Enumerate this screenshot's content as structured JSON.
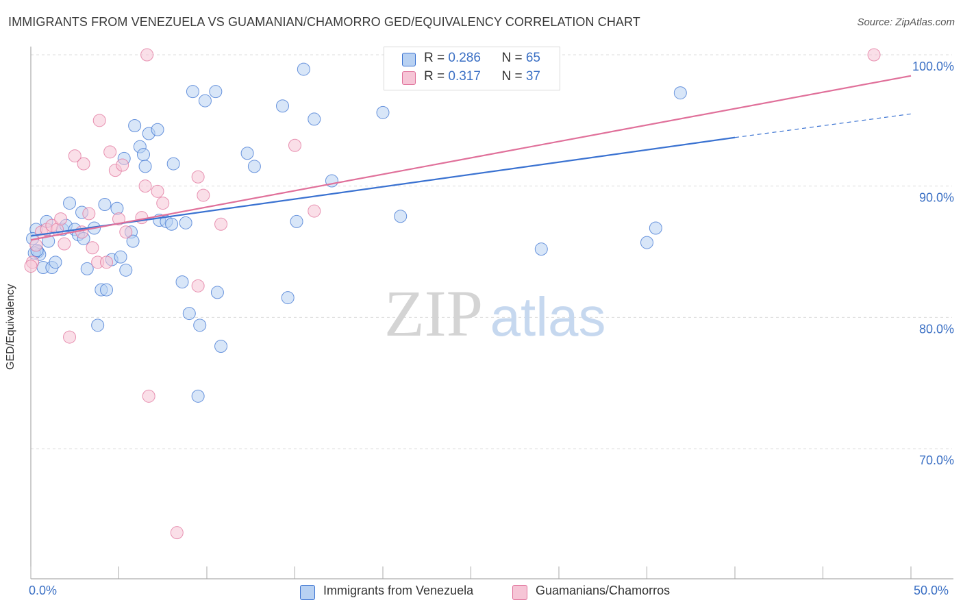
{
  "title": "IMMIGRANTS FROM VENEZUELA VS GUAMANIAN/CHAMORRO GED/EQUIVALENCY CORRELATION CHART",
  "source": "Source: ZipAtlas.com",
  "watermark": {
    "zip": "ZIP",
    "atlas": "atlas"
  },
  "colors": {
    "blue": "#3a72d1",
    "pink": "#e0709a",
    "blue_fill": "#b8d1f2",
    "pink_fill": "#f6c5d6",
    "tick_label": "#3a6fc4",
    "grid": "#dcdcdc"
  },
  "legend_top": {
    "rows": [
      {
        "r_label": "R = ",
        "r_value": "0.286",
        "n_label": "N = ",
        "n_value": "65"
      },
      {
        "r_label": "R = ",
        "r_value": "0.317",
        "n_label": "N = ",
        "n_value": "37"
      }
    ]
  },
  "chart_data": {
    "type": "scatter",
    "title": "IMMIGRANTS FROM VENEZUELA VS GUAMANIAN/CHAMORRO GED/EQUIVALENCY CORRELATION CHART",
    "xlabel": "",
    "ylabel": "GED/Equivalency",
    "xlim": [
      0,
      50
    ],
    "ylim": [
      60,
      101.5
    ],
    "x_tick_labels": [
      "0.0%",
      "50.0%"
    ],
    "y_ticks": [
      70,
      80,
      90,
      100
    ],
    "y_tick_labels": [
      "70.0%",
      "80.0%",
      "90.0%",
      "100.0%"
    ],
    "grid": "horizontal dashed",
    "legend_position": "bottom-center",
    "series": [
      {
        "name": "Immigrants from Venezuela",
        "color": "#3a72d1",
        "r": 0.286,
        "n": 65,
        "trend": {
          "x0": 0.0,
          "y0": 86.2,
          "x1": 40.0,
          "y1": 93.7,
          "dashed_to_x": 50.0,
          "dashed_to_y": 95.5
        },
        "points": [
          [
            0.3,
            86.7
          ],
          [
            0.4,
            85.0
          ],
          [
            0.5,
            84.8
          ],
          [
            0.7,
            83.8
          ],
          [
            0.9,
            87.3
          ],
          [
            1.0,
            85.8
          ],
          [
            1.2,
            83.8
          ],
          [
            1.4,
            84.2
          ],
          [
            1.8,
            86.7
          ],
          [
            2.0,
            87.0
          ],
          [
            2.2,
            88.7
          ],
          [
            2.5,
            86.7
          ],
          [
            2.7,
            86.3
          ],
          [
            2.9,
            88.0
          ],
          [
            3.0,
            86.0
          ],
          [
            3.2,
            83.7
          ],
          [
            3.6,
            86.8
          ],
          [
            3.8,
            79.4
          ],
          [
            4.0,
            82.1
          ],
          [
            4.2,
            88.6
          ],
          [
            4.3,
            82.1
          ],
          [
            4.6,
            84.4
          ],
          [
            4.9,
            88.3
          ],
          [
            5.1,
            84.6
          ],
          [
            5.3,
            92.1
          ],
          [
            5.4,
            83.6
          ],
          [
            5.7,
            86.5
          ],
          [
            5.8,
            85.8
          ],
          [
            5.9,
            94.6
          ],
          [
            6.2,
            93.0
          ],
          [
            6.4,
            92.4
          ],
          [
            6.5,
            91.5
          ],
          [
            6.7,
            94.0
          ],
          [
            7.2,
            94.3
          ],
          [
            7.3,
            87.4
          ],
          [
            7.7,
            87.3
          ],
          [
            8.0,
            87.1
          ],
          [
            8.1,
            91.7
          ],
          [
            8.6,
            82.7
          ],
          [
            8.8,
            87.2
          ],
          [
            9.0,
            80.3
          ],
          [
            9.2,
            97.2
          ],
          [
            9.5,
            74.0
          ],
          [
            9.6,
            79.4
          ],
          [
            9.9,
            96.5
          ],
          [
            10.5,
            97.2
          ],
          [
            10.6,
            81.9
          ],
          [
            10.8,
            77.8
          ],
          [
            12.3,
            92.5
          ],
          [
            12.7,
            91.5
          ],
          [
            14.3,
            96.1
          ],
          [
            14.6,
            81.5
          ],
          [
            15.1,
            87.3
          ],
          [
            15.5,
            98.9
          ],
          [
            16.1,
            95.1
          ],
          [
            17.1,
            90.4
          ],
          [
            20.0,
            95.6
          ],
          [
            21.0,
            87.7
          ],
          [
            29.0,
            85.2
          ],
          [
            35.0,
            85.7
          ],
          [
            35.5,
            86.8
          ],
          [
            36.9,
            97.1
          ],
          [
            0.1,
            86.0
          ],
          [
            0.2,
            84.9
          ],
          [
            0.35,
            85.1
          ]
        ]
      },
      {
        "name": "Guamanians/Chamorros",
        "color": "#e0709a",
        "r": 0.317,
        "n": 37,
        "trend": {
          "x0": 0.0,
          "y0": 85.9,
          "x1": 50.0,
          "y1": 98.4
        },
        "points": [
          [
            0.1,
            84.2
          ],
          [
            0.3,
            85.5
          ],
          [
            0.6,
            86.5
          ],
          [
            0.9,
            86.7
          ],
          [
            1.2,
            87.0
          ],
          [
            1.5,
            86.7
          ],
          [
            1.7,
            87.5
          ],
          [
            1.9,
            85.6
          ],
          [
            2.2,
            78.5
          ],
          [
            2.5,
            92.3
          ],
          [
            2.9,
            86.5
          ],
          [
            3.0,
            91.7
          ],
          [
            3.3,
            87.9
          ],
          [
            3.5,
            85.3
          ],
          [
            3.8,
            84.2
          ],
          [
            3.9,
            95.0
          ],
          [
            4.3,
            84.2
          ],
          [
            4.5,
            92.6
          ],
          [
            4.8,
            91.2
          ],
          [
            5.0,
            87.5
          ],
          [
            5.2,
            91.6
          ],
          [
            5.4,
            86.5
          ],
          [
            6.3,
            87.6
          ],
          [
            6.5,
            90.0
          ],
          [
            6.7,
            74.0
          ],
          [
            6.6,
            100.0
          ],
          [
            7.2,
            89.6
          ],
          [
            7.5,
            88.7
          ],
          [
            8.3,
            63.6
          ],
          [
            9.5,
            82.4
          ],
          [
            9.5,
            90.7
          ],
          [
            9.8,
            89.3
          ],
          [
            10.8,
            87.1
          ],
          [
            15.0,
            93.1
          ],
          [
            16.1,
            88.1
          ],
          [
            47.9,
            100.0
          ],
          [
            0.0,
            83.9
          ]
        ]
      }
    ]
  }
}
